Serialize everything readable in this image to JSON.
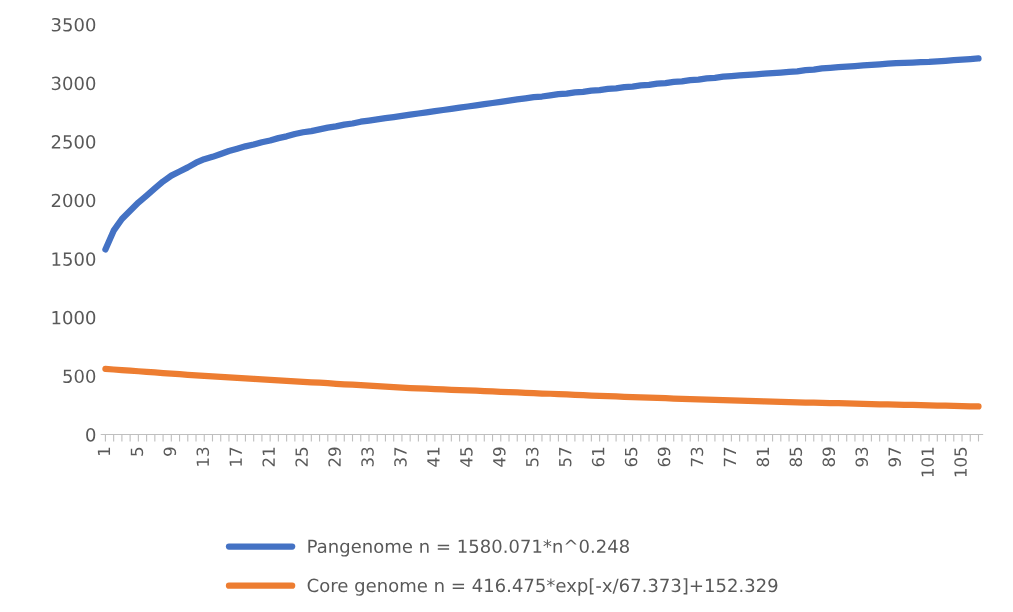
{
  "chart_data": {
    "type": "line",
    "categories": [
      "1",
      null,
      null,
      null,
      "5",
      null,
      null,
      null,
      "9",
      null,
      null,
      null,
      "13",
      null,
      null,
      null,
      "17",
      null,
      null,
      null,
      "21",
      null,
      null,
      null,
      "25",
      null,
      null,
      null,
      "29",
      null,
      null,
      null,
      "33",
      null,
      null,
      null,
      "37",
      null,
      null,
      null,
      "41",
      null,
      null,
      null,
      "45",
      null,
      null,
      null,
      "49",
      null,
      null,
      null,
      "53",
      null,
      null,
      null,
      "57",
      null,
      null,
      null,
      "61",
      null,
      null,
      null,
      "65",
      null,
      null,
      null,
      "69",
      null,
      null,
      null,
      "73",
      null,
      null,
      null,
      "77",
      null,
      null,
      null,
      "81",
      null,
      null,
      null,
      "85",
      null,
      null,
      null,
      "89",
      null,
      null,
      null,
      "93",
      null,
      null,
      null,
      "97",
      null,
      null,
      null,
      "101",
      null,
      null,
      null,
      "105",
      null,
      null
    ],
    "series": [
      {
        "name": "Pangenome n = 1580.071*n^0.248",
        "color": "#4472c4",
        "values": [
          1580,
          1740,
          1840,
          1910,
          1980,
          2040,
          2100,
          2160,
          2210,
          2245,
          2280,
          2320,
          2350,
          2370,
          2395,
          2420,
          2440,
          2460,
          2475,
          2495,
          2510,
          2530,
          2545,
          2565,
          2580,
          2590,
          2605,
          2620,
          2630,
          2645,
          2655,
          2670,
          2680,
          2690,
          2700,
          2710,
          2720,
          2730,
          2740,
          2750,
          2760,
          2770,
          2780,
          2790,
          2800,
          2810,
          2820,
          2830,
          2840,
          2850,
          2860,
          2870,
          2880,
          2885,
          2895,
          2905,
          2910,
          2920,
          2925,
          2935,
          2940,
          2950,
          2955,
          2965,
          2970,
          2980,
          2985,
          2995,
          3000,
          3010,
          3015,
          3025,
          3030,
          3040,
          3045,
          3055,
          3060,
          3065,
          3070,
          3075,
          3080,
          3085,
          3090,
          3095,
          3100,
          3110,
          3115,
          3125,
          3130,
          3135,
          3140,
          3145,
          3150,
          3155,
          3160,
          3165,
          3170,
          3172,
          3175,
          3178,
          3180,
          3185,
          3190,
          3195,
          3200,
          3205,
          3210
        ]
      },
      {
        "name": "Core genome n = 416.475*exp[-x/67.373]+152.329",
        "color": "#ed7d31",
        "values": [
          560,
          555,
          550,
          545,
          540,
          535,
          530,
          525,
          520,
          515,
          510,
          505,
          500,
          496,
          492,
          488,
          484,
          479,
          475,
          471,
          467,
          462,
          458,
          454,
          450,
          446,
          442,
          438,
          433,
          429,
          425,
          421,
          417,
          413,
          408,
          404,
          400,
          397,
          394,
          391,
          388,
          385,
          382,
          380,
          377,
          374,
          371,
          368,
          365,
          362,
          359,
          356,
          353,
          350,
          348,
          345,
          342,
          339,
          336,
          333,
          330,
          327,
          325,
          322,
          320,
          317,
          315,
          312,
          310,
          307,
          305,
          302,
          300,
          298,
          296,
          294,
          292,
          290,
          288,
          285,
          283,
          281,
          279,
          277,
          275,
          273,
          272,
          270,
          268,
          267,
          265,
          263,
          262,
          260,
          258,
          257,
          255,
          253,
          252,
          250,
          249,
          247,
          246,
          244,
          243,
          241,
          240
        ]
      }
    ],
    "ylim": [
      0,
      3500
    ],
    "yticks": [
      0,
      500,
      1000,
      1500,
      2000,
      2500,
      3000,
      3500
    ],
    "legend": "bottom",
    "line_style": "solid",
    "marker": "none"
  }
}
